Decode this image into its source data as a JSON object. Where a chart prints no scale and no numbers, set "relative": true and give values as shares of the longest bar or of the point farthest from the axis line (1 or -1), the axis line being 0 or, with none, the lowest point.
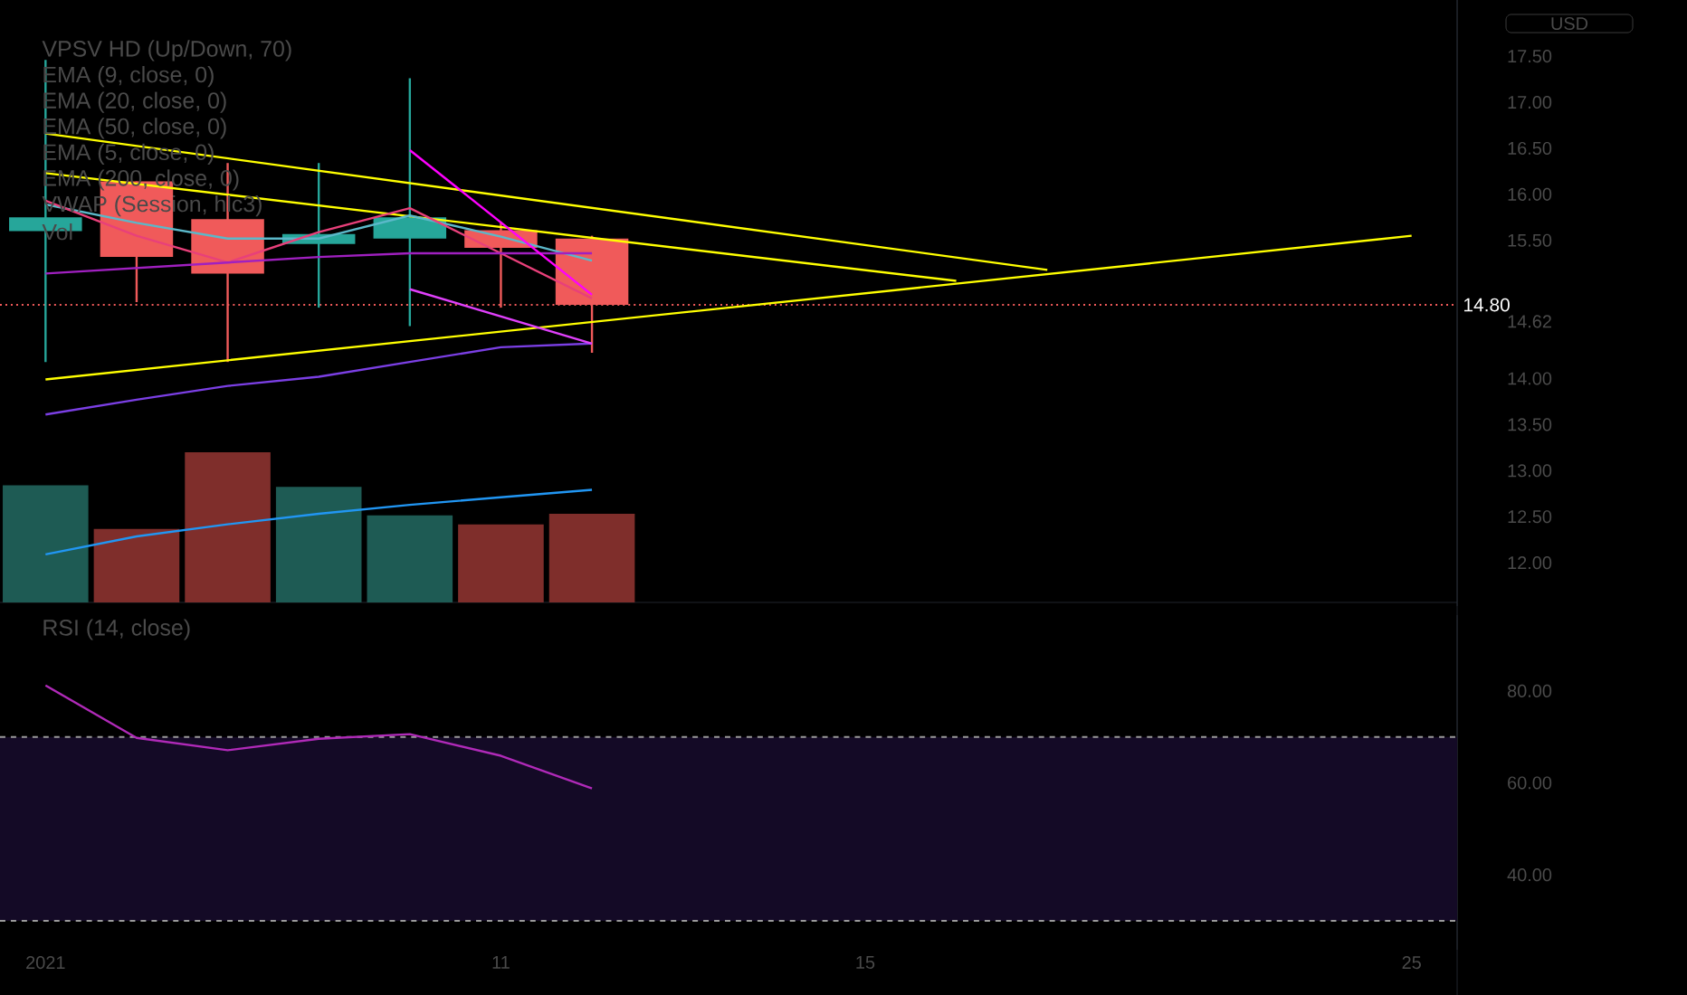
{
  "chart_data": [
    {
      "type": "candlestick",
      "categories": [
        "2021",
        null,
        null,
        null,
        null,
        "11",
        null,
        null,
        null,
        "15",
        null,
        null,
        null,
        null,
        null,
        "25"
      ],
      "ohlc": [
        [
          15.6,
          17.46,
          14.18,
          15.75
        ],
        [
          16.14,
          16.14,
          14.83,
          15.32
        ],
        [
          15.73,
          16.34,
          14.18,
          15.14
        ],
        [
          15.46,
          16.34,
          14.77,
          15.57
        ],
        [
          15.52,
          17.26,
          14.57,
          15.75
        ],
        [
          15.61,
          15.7,
          14.77,
          15.42
        ],
        [
          15.52,
          15.55,
          14.28,
          14.8
        ],
        null,
        null,
        null,
        null,
        null,
        null,
        null,
        null,
        null
      ],
      "colors": [
        "#26a69a",
        "#f05a5a",
        "#f05a5a",
        "#26a69a",
        "#26a69a",
        "#f05a5a",
        "#f05a5a",
        null,
        null,
        null,
        null,
        null,
        null,
        null,
        null,
        null
      ],
      "ylabel": "USD",
      "ylim": [
        11.53,
        18.11
      ],
      "yticks": [
        {
          "value": 12,
          "label": "12.00"
        },
        {
          "value": 12.5,
          "label": "12.50"
        },
        {
          "value": 13,
          "label": "13.00"
        },
        {
          "value": 13.5,
          "label": "13.50"
        },
        {
          "value": 14,
          "label": "14.00"
        },
        {
          "value": 14.62,
          "label": "14.62"
        },
        {
          "value": 15.5,
          "label": "15.50"
        },
        {
          "value": 16,
          "label": "16.00"
        },
        {
          "value": 16.5,
          "label": "16.50"
        },
        {
          "value": 17,
          "label": "17.00"
        },
        {
          "value": 17.5,
          "label": "17.50"
        }
      ],
      "tick_labels": "y",
      "series": [
        {
          "type": "line",
          "color": "#ffff00",
          "values": [
            16.66,
            null,
            null,
            null,
            null,
            null,
            null,
            null,
            null,
            null,
            null,
            15.18,
            null,
            null,
            null,
            null
          ]
        },
        {
          "type": "line",
          "color": "#ffff00",
          "values": [
            16.23,
            null,
            null,
            null,
            null,
            null,
            null,
            null,
            null,
            null,
            15.06,
            null,
            null,
            null,
            null,
            null
          ]
        },
        {
          "type": "line",
          "color": "#ffff00",
          "values": [
            13.99,
            null,
            null,
            null,
            null,
            null,
            null,
            null,
            null,
            null,
            null,
            null,
            null,
            null,
            null,
            15.55
          ]
        },
        {
          "type": "line",
          "color": "#5bb8c9",
          "values": [
            15.89,
            15.69,
            15.52,
            15.52,
            15.77,
            15.54,
            15.28,
            null,
            null,
            null,
            null,
            null,
            null,
            null,
            null,
            null
          ]
        },
        {
          "type": "line",
          "color": "#e8407a",
          "values": [
            15.93,
            15.55,
            15.26,
            15.59,
            15.85,
            15.36,
            14.87,
            null,
            null,
            null,
            null,
            null,
            null,
            null,
            null,
            null
          ]
        },
        {
          "type": "line",
          "color": "#a020c0",
          "values": [
            15.14,
            15.2,
            15.26,
            15.32,
            15.36,
            15.36,
            15.36,
            null,
            null,
            null,
            null,
            null,
            null,
            null,
            null,
            null
          ]
        },
        {
          "type": "line",
          "color": "#7b3fe4",
          "values": [
            13.61,
            13.77,
            13.92,
            14.02,
            14.18,
            14.34,
            14.38,
            null,
            null,
            null,
            null,
            null,
            null,
            null,
            null,
            null
          ]
        },
        {
          "type": "line",
          "color": "#ff00ff",
          "values": [
            null,
            null,
            null,
            null,
            16.48,
            null,
            14.91,
            null,
            null,
            null,
            null,
            null,
            null,
            null,
            null,
            null
          ]
        },
        {
          "type": "line",
          "color": "#e040fb",
          "values": [
            null,
            null,
            null,
            null,
            14.97,
            null,
            14.38,
            null,
            null,
            null,
            null,
            null,
            null,
            null,
            null,
            null
          ]
        }
      ],
      "ref_lines": [
        {
          "axis": "y",
          "value": 14.8,
          "label": "14.80",
          "color": "#f05a5a",
          "line_style": "dotted"
        }
      ],
      "annotations": [
        "VPSV HD (Up/Down, 70)",
        "EMA (9, close, 0)",
        "EMA (20, close, 0)",
        "EMA (50, close, 0)",
        "EMA (5, close, 0)",
        "EMA (200, close, 0)",
        "VWAP (Session, hlc3)",
        "Vol"
      ]
    },
    {
      "type": "bar",
      "relative": true,
      "categories": [
        "2021",
        null,
        null,
        null,
        null,
        "11",
        null,
        null,
        null,
        "15",
        null,
        null,
        null,
        null,
        null,
        "25"
      ],
      "tick_labels": false,
      "series": [
        {
          "values": [
            0.78,
            0.49,
            1,
            0.77,
            0.58,
            0.52,
            0.59,
            null,
            null,
            null,
            null,
            null,
            null,
            null,
            null,
            null
          ],
          "colors": [
            "#1e5b54",
            "#7f2e2b",
            "#7f2e2b",
            "#1e5b54",
            "#1e5b54",
            "#7f2e2b",
            "#7f2e2b",
            null,
            null,
            null,
            null,
            null,
            null,
            null,
            null,
            null
          ]
        },
        {
          "type": "line",
          "color": "#2196f3",
          "values": [
            0.32,
            0.44,
            0.52,
            0.59,
            0.65,
            0.7,
            0.75,
            null,
            null,
            null,
            null,
            null,
            null,
            null,
            null,
            null
          ]
        }
      ]
    },
    {
      "type": "line",
      "categories": [
        "2021",
        null,
        null,
        null,
        null,
        "11",
        null,
        null,
        null,
        "15",
        null,
        null,
        null,
        null,
        null,
        "25"
      ],
      "values": [
        81.2,
        69.8,
        67.1,
        69.6,
        70.6,
        65.9,
        58.8,
        null,
        null,
        null,
        null,
        null,
        null,
        null,
        null,
        null
      ],
      "color": "#b02ab8",
      "ylim": [
        23.7,
        96.5
      ],
      "yticks": [
        {
          "value": 40,
          "label": "40.00"
        },
        {
          "value": 60,
          "label": "60.00"
        },
        {
          "value": 80,
          "label": "80.00"
        }
      ],
      "bands": [
        {
          "axis": "y",
          "from": 30,
          "to": 70,
          "color": "#140a26"
        }
      ],
      "ref_lines": [
        {
          "axis": "y",
          "value": 70,
          "color": "#9a9a9a",
          "line_style": "dashed"
        },
        {
          "axis": "y",
          "value": 30,
          "color": "#9a9a9a",
          "line_style": "dashed"
        }
      ],
      "annotations": [
        "RSI (14, close)"
      ]
    }
  ]
}
